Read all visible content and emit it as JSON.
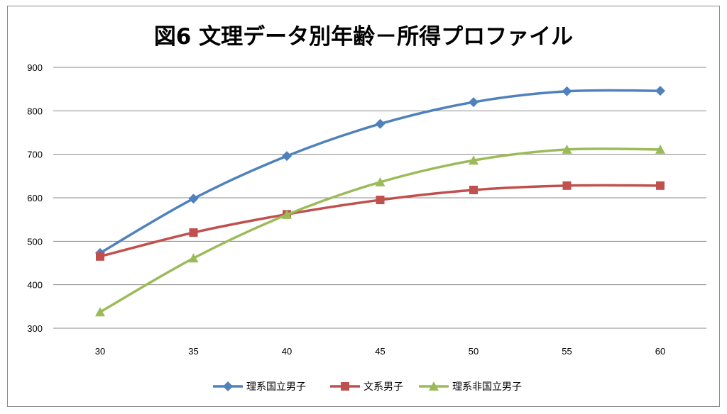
{
  "chart_data": {
    "type": "line",
    "title": "図6  文理データ別年齢－所得プロファイル",
    "xlabel": "",
    "ylabel": "",
    "x": [
      30,
      35,
      40,
      45,
      50,
      55,
      60
    ],
    "ylim": [
      300,
      900
    ],
    "yticks": [
      300,
      400,
      500,
      600,
      700,
      800,
      900
    ],
    "grid": true,
    "legend": "bottom",
    "smooth": true,
    "series": [
      {
        "name": "理系国立男子",
        "color": "#4F81BD",
        "marker": "diamond",
        "values": [
          473,
          598,
          696,
          770,
          820,
          845,
          846
        ]
      },
      {
        "name": "文系男子",
        "color": "#C0504D",
        "marker": "square",
        "values": [
          465,
          520,
          562,
          595,
          618,
          628,
          628
        ]
      },
      {
        "name": "理系非国立男子",
        "color": "#9BBB59",
        "marker": "triangle",
        "values": [
          337,
          461,
          561,
          636,
          686,
          711,
          711
        ]
      }
    ]
  }
}
